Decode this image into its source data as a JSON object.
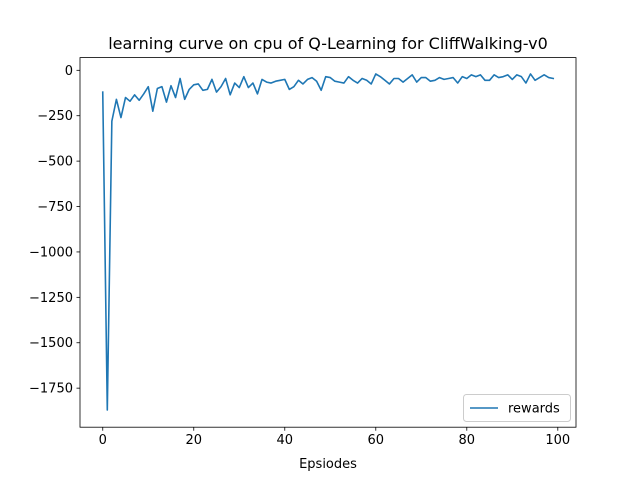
{
  "chart_data": {
    "type": "line",
    "title": "learning curve on cpu of Q-Learning for CliffWalking-v0",
    "xlabel": "Epsiodes",
    "ylabel": "",
    "xlim": [
      -5,
      104
    ],
    "ylim": [
      -1965,
      70
    ],
    "xticks": [
      0,
      20,
      40,
      60,
      80,
      100
    ],
    "yticks": [
      0,
      -250,
      -500,
      -750,
      -1000,
      -1250,
      -1500,
      -1750
    ],
    "xtick_labels": [
      "0",
      "20",
      "40",
      "60",
      "80",
      "100"
    ],
    "ytick_labels": [
      "0",
      "−250",
      "−500",
      "−750",
      "−1000",
      "−1250",
      "−1500",
      "−1750"
    ],
    "grid": false,
    "legend_position": "lower right",
    "series": [
      {
        "name": "rewards",
        "color": "#1f77b4",
        "x": [
          0,
          1,
          2,
          3,
          4,
          5,
          6,
          7,
          8,
          9,
          10,
          11,
          12,
          13,
          14,
          15,
          16,
          17,
          18,
          19,
          20,
          21,
          22,
          23,
          24,
          25,
          26,
          27,
          28,
          29,
          30,
          31,
          32,
          33,
          34,
          35,
          36,
          37,
          38,
          39,
          40,
          41,
          42,
          43,
          44,
          45,
          46,
          47,
          48,
          49,
          50,
          51,
          52,
          53,
          54,
          55,
          56,
          57,
          58,
          59,
          60,
          61,
          62,
          63,
          64,
          65,
          66,
          67,
          68,
          69,
          70,
          71,
          72,
          73,
          74,
          75,
          76,
          77,
          78,
          79,
          80,
          81,
          82,
          83,
          84,
          85,
          86,
          87,
          88,
          89,
          90,
          91,
          92,
          93,
          94,
          95,
          96,
          97,
          98,
          99
        ],
        "values": [
          -120,
          -1870,
          -280,
          -160,
          -260,
          -150,
          -170,
          -135,
          -165,
          -130,
          -90,
          -225,
          -100,
          -90,
          -175,
          -85,
          -150,
          -45,
          -160,
          -105,
          -80,
          -75,
          -110,
          -105,
          -50,
          -120,
          -90,
          -45,
          -135,
          -70,
          -95,
          -35,
          -95,
          -70,
          -130,
          -50,
          -65,
          -70,
          -60,
          -55,
          -50,
          -105,
          -90,
          -55,
          -75,
          -50,
          -40,
          -60,
          -110,
          -35,
          -40,
          -60,
          -65,
          -70,
          -35,
          -55,
          -70,
          -45,
          -55,
          -75,
          -20,
          -35,
          -55,
          -75,
          -45,
          -45,
          -65,
          -45,
          -25,
          -65,
          -40,
          -40,
          -60,
          -55,
          -40,
          -50,
          -45,
          -40,
          -70,
          -35,
          -45,
          -25,
          -35,
          -25,
          -55,
          -55,
          -25,
          -40,
          -35,
          -25,
          -50,
          -25,
          -35,
          -70,
          -20,
          -55,
          -40,
          -25,
          -40,
          -45
        ]
      }
    ]
  }
}
